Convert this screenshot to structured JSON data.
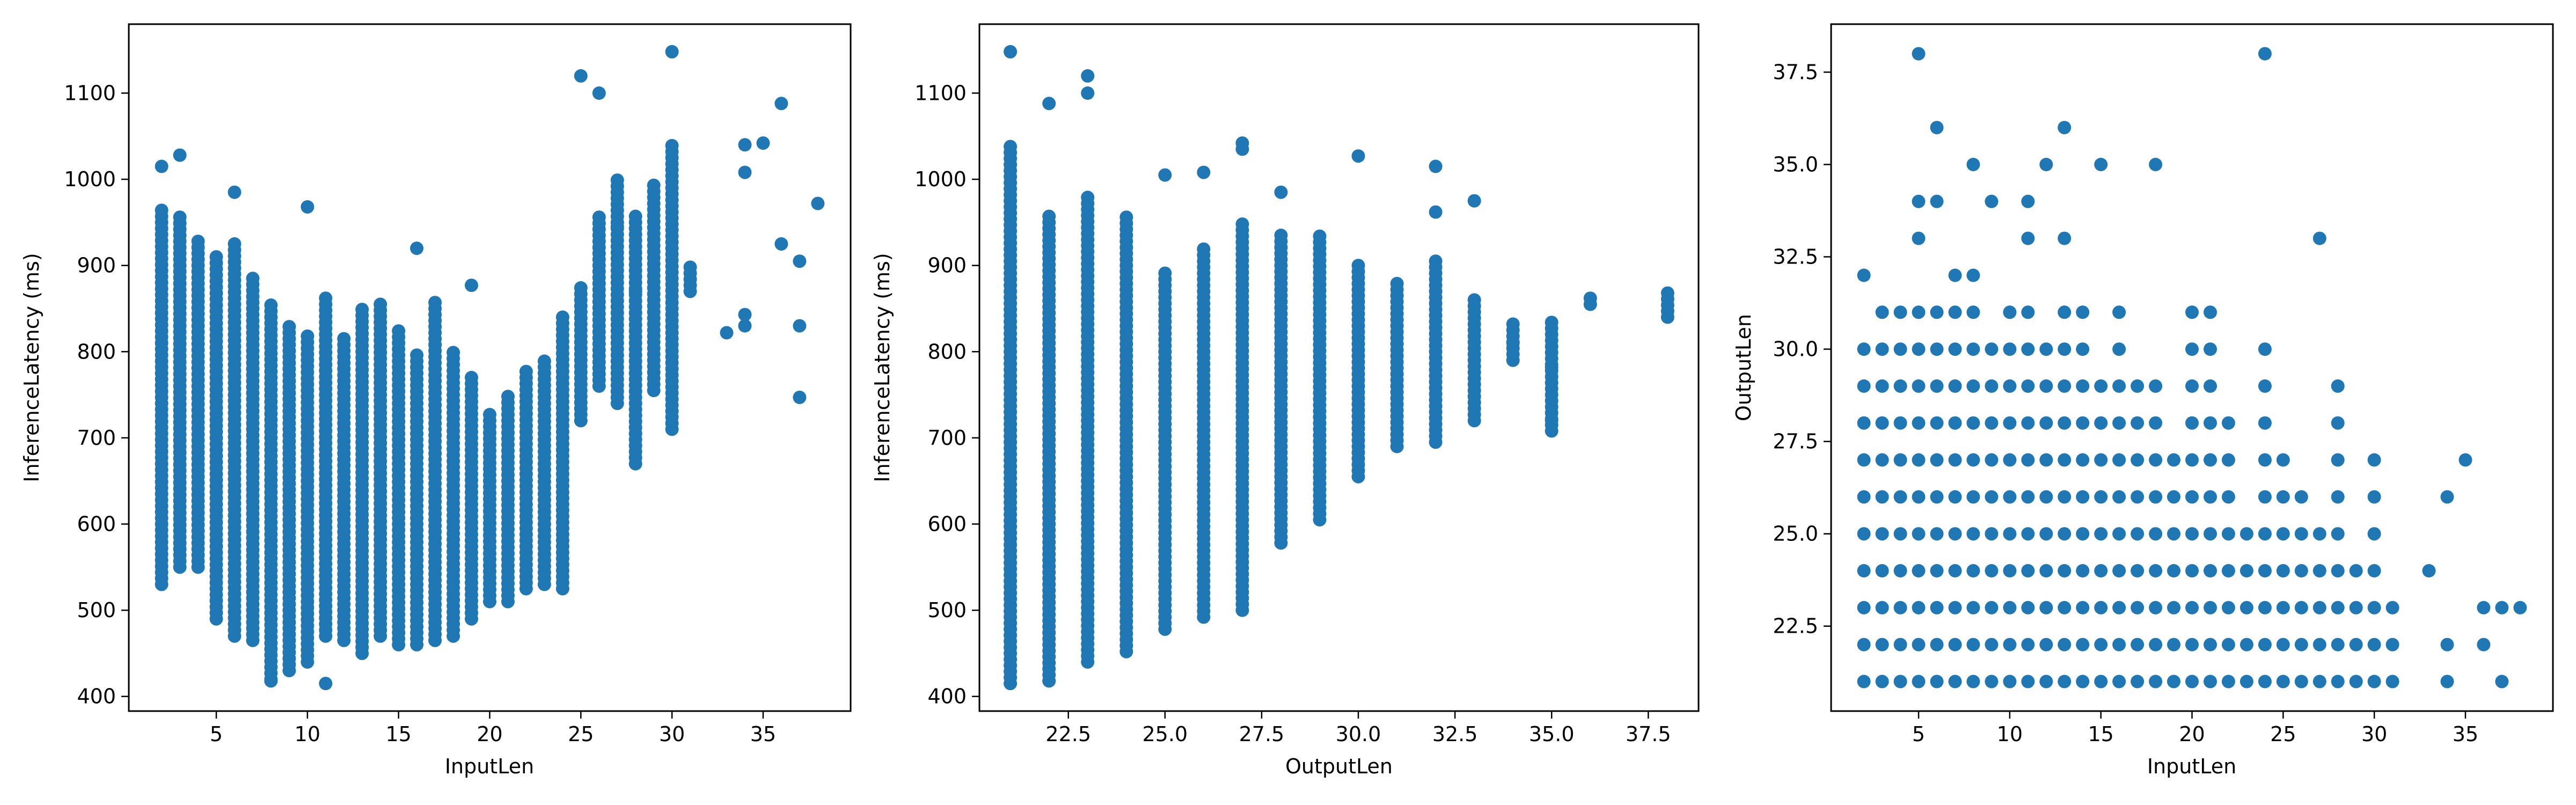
{
  "chart_data": [
    {
      "type": "scatter",
      "title": "",
      "xlabel": "InputLen",
      "ylabel": "InferenceLatency (ms)",
      "xlim": [
        0.2,
        39.8
      ],
      "ylim": [
        383,
        1180
      ],
      "xticks": [
        5,
        10,
        15,
        20,
        25,
        30,
        35
      ],
      "yticks": [
        400,
        500,
        600,
        700,
        800,
        900,
        1000,
        1100
      ],
      "grid": false,
      "color": "#1f77b4",
      "points": {
        "columns": [
          [
            2,
            530,
            965
          ],
          [
            3,
            550,
            960
          ],
          [
            4,
            550,
            930
          ],
          [
            5,
            490,
            910
          ],
          [
            6,
            470,
            925
          ],
          [
            7,
            465,
            890
          ],
          [
            8,
            420,
            855
          ],
          [
            9,
            430,
            830
          ],
          [
            10,
            440,
            820
          ],
          [
            11,
            470,
            865
          ],
          [
            12,
            465,
            815
          ],
          [
            13,
            450,
            855
          ],
          [
            14,
            470,
            860
          ],
          [
            15,
            460,
            825
          ],
          [
            16,
            460,
            800
          ],
          [
            17,
            465,
            860
          ],
          [
            18,
            470,
            800
          ],
          [
            19,
            490,
            775
          ],
          [
            20,
            510,
            730
          ],
          [
            21,
            510,
            750
          ],
          [
            22,
            525,
            780
          ],
          [
            23,
            530,
            790
          ],
          [
            24,
            525,
            840
          ],
          [
            25,
            720,
            880
          ],
          [
            26,
            760,
            960
          ],
          [
            27,
            740,
            1005
          ],
          [
            28,
            670,
            960
          ],
          [
            29,
            755,
            995
          ],
          [
            30,
            710,
            1040
          ],
          [
            31,
            870,
            900
          ]
        ],
        "extra": [
          [
            2,
            1015
          ],
          [
            3,
            1028
          ],
          [
            6,
            985
          ],
          [
            10,
            968
          ],
          [
            16,
            920
          ],
          [
            19,
            877
          ],
          [
            25,
            1120
          ],
          [
            26,
            1100
          ],
          [
            27,
            945
          ],
          [
            28,
            870
          ],
          [
            30,
            1148
          ],
          [
            33,
            822
          ],
          [
            34,
            830
          ],
          [
            34,
            843
          ],
          [
            34,
            1008
          ],
          [
            34,
            1040
          ],
          [
            35,
            1042
          ],
          [
            36,
            925
          ],
          [
            36,
            1088
          ],
          [
            37,
            905
          ],
          [
            37,
            830
          ],
          [
            37,
            747
          ],
          [
            38,
            972
          ],
          [
            11,
            415
          ],
          [
            8,
            418
          ]
        ]
      }
    },
    {
      "type": "scatter",
      "title": "",
      "xlabel": "OutputLen",
      "ylabel": "InferenceLatency (ms)",
      "xlim": [
        20.2,
        38.8
      ],
      "ylim": [
        383,
        1180
      ],
      "xticks": [
        22.5,
        25.0,
        27.5,
        30.0,
        32.5,
        35.0,
        37.5
      ],
      "yticks": [
        400,
        500,
        600,
        700,
        800,
        900,
        1000,
        1100
      ],
      "grid": false,
      "color": "#1f77b4",
      "points": {
        "columns": [
          [
            21,
            415,
            1040
          ],
          [
            22,
            418,
            960
          ],
          [
            23,
            440,
            985
          ],
          [
            24,
            452,
            958
          ],
          [
            25,
            478,
            895
          ],
          [
            26,
            492,
            920
          ],
          [
            27,
            500,
            950
          ],
          [
            28,
            578,
            935
          ],
          [
            29,
            605,
            935
          ],
          [
            30,
            655,
            905
          ],
          [
            31,
            690,
            882
          ],
          [
            32,
            695,
            905
          ],
          [
            33,
            720,
            862
          ],
          [
            34,
            790,
            832
          ],
          [
            35,
            708,
            835
          ],
          [
            36,
            855,
            862
          ],
          [
            38,
            840,
            872
          ]
        ],
        "extra": [
          [
            21,
            1148
          ],
          [
            22,
            1088
          ],
          [
            23,
            1100
          ],
          [
            23,
            1120
          ],
          [
            25,
            1005
          ],
          [
            26,
            1008
          ],
          [
            27,
            1035
          ],
          [
            27,
            1042
          ],
          [
            28,
            985
          ],
          [
            30,
            1027
          ],
          [
            32,
            1015
          ],
          [
            32,
            962
          ],
          [
            33,
            975
          ],
          [
            35,
            782
          ],
          [
            35,
            720
          ],
          [
            34,
            810
          ]
        ]
      }
    },
    {
      "type": "scatter",
      "title": "",
      "xlabel": "InputLen",
      "ylabel": "OutputLen",
      "xlim": [
        0.2,
        39.8
      ],
      "ylim": [
        20.2,
        38.8
      ],
      "xticks": [
        5,
        10,
        15,
        20,
        25,
        30,
        35
      ],
      "yticks": [
        22.5,
        25.0,
        27.5,
        30.0,
        32.5,
        35.0,
        37.5
      ],
      "grid": false,
      "color": "#1f77b4",
      "points": {
        "columns": [
          [
            2,
            21,
            30
          ],
          [
            3,
            21,
            31
          ],
          [
            4,
            21,
            31
          ],
          [
            5,
            21,
            31
          ],
          [
            6,
            21,
            31
          ],
          [
            7,
            21,
            32
          ],
          [
            8,
            21,
            32
          ],
          [
            9,
            21,
            30
          ],
          [
            10,
            21,
            31
          ],
          [
            11,
            21,
            31
          ],
          [
            12,
            21,
            30
          ],
          [
            13,
            21,
            31
          ],
          [
            14,
            21,
            31
          ],
          [
            15,
            21,
            29
          ],
          [
            16,
            21,
            31
          ],
          [
            17,
            21,
            29
          ],
          [
            18,
            21,
            29
          ],
          [
            19,
            21,
            27
          ],
          [
            20,
            21,
            31
          ],
          [
            21,
            21,
            31
          ],
          [
            22,
            21,
            28
          ],
          [
            23,
            21,
            25
          ],
          [
            24,
            21,
            30
          ],
          [
            25,
            21,
            27
          ],
          [
            26,
            21,
            26
          ],
          [
            27,
            21,
            25
          ],
          [
            28,
            21,
            29
          ],
          [
            29,
            21,
            24
          ],
          [
            30,
            21,
            27
          ],
          [
            31,
            21,
            23
          ]
        ],
        "extra": [
          [
            2,
            32
          ],
          [
            5,
            38
          ],
          [
            5,
            33
          ],
          [
            5,
            34
          ],
          [
            6,
            34
          ],
          [
            6,
            36
          ],
          [
            8,
            35
          ],
          [
            9,
            34
          ],
          [
            11,
            33
          ],
          [
            11,
            34
          ],
          [
            12,
            35
          ],
          [
            13,
            33
          ],
          [
            13,
            36
          ],
          [
            15,
            35
          ],
          [
            18,
            35
          ],
          [
            24,
            38
          ],
          [
            27,
            33
          ],
          [
            33,
            24
          ],
          [
            34,
            26
          ],
          [
            34,
            22
          ],
          [
            34,
            21
          ],
          [
            35,
            27
          ],
          [
            36,
            22
          ],
          [
            36,
            23
          ],
          [
            37,
            23
          ],
          [
            37,
            21
          ],
          [
            38,
            23
          ]
        ]
      }
    }
  ]
}
